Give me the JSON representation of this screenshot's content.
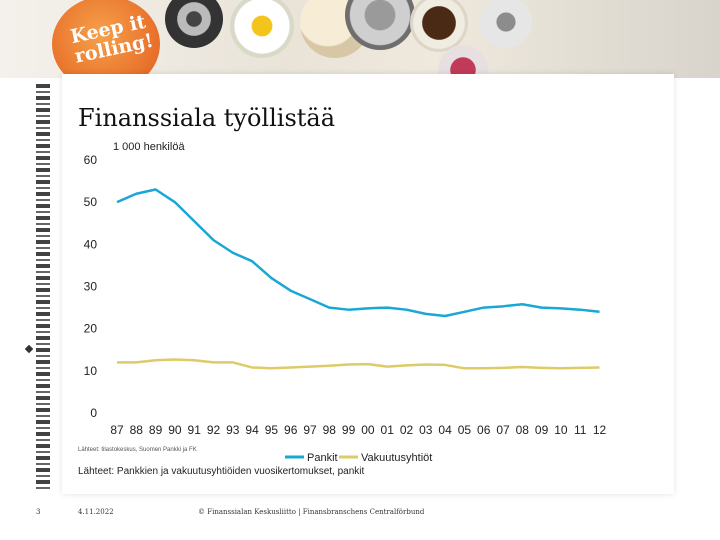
{
  "banner": {
    "logo_text": "Keep it rolling!"
  },
  "slide": {
    "title": "Finanssiala työllistää",
    "source_small": "Lähteet: tilastokeskus, Suomen Pankki ja FK",
    "source": "Lähteet: Pankkien ja vakuutusyhtiöiden vuosikertomukset, pankit",
    "page_number": "3",
    "date": "4.11.2022",
    "copyright": "© Finanssialan Keskusliitto | Finansbranschens Centralförbund"
  },
  "colors": {
    "pankit": "#1aa7d6",
    "vakuutusyhtiot": "#dccb68"
  },
  "chart_data": {
    "type": "line",
    "unit_label": "1 000 henkilöä",
    "categories": [
      "87",
      "88",
      "89",
      "90",
      "91",
      "92",
      "93",
      "94",
      "95",
      "96",
      "97",
      "98",
      "99",
      "00",
      "01",
      "02",
      "03",
      "04",
      "05",
      "06",
      "07",
      "08",
      "09",
      "10",
      "11",
      "12"
    ],
    "yticks": [
      "0",
      "10",
      "20",
      "30",
      "40",
      "50",
      "60"
    ],
    "ylim": [
      0,
      60
    ],
    "grid": false,
    "legend_position": "bottom-right",
    "series": [
      {
        "name": "Pankit",
        "values": [
          50,
          52,
          53,
          50,
          45.5,
          41,
          38,
          36,
          32,
          29,
          27,
          25,
          24.5,
          24.8,
          25,
          24.5,
          23.5,
          23,
          24,
          25,
          25.3,
          25.8,
          25,
          24.8,
          24.5,
          24
        ]
      },
      {
        "name": "Vakuutusyhtiöt",
        "values": [
          12,
          12,
          12.5,
          12.7,
          12.5,
          12,
          12,
          10.8,
          10.6,
          10.8,
          11,
          11.2,
          11.5,
          11.6,
          11,
          11.3,
          11.5,
          11.4,
          10.6,
          10.6,
          10.7,
          10.9,
          10.7,
          10.6,
          10.7,
          10.8
        ]
      }
    ]
  }
}
